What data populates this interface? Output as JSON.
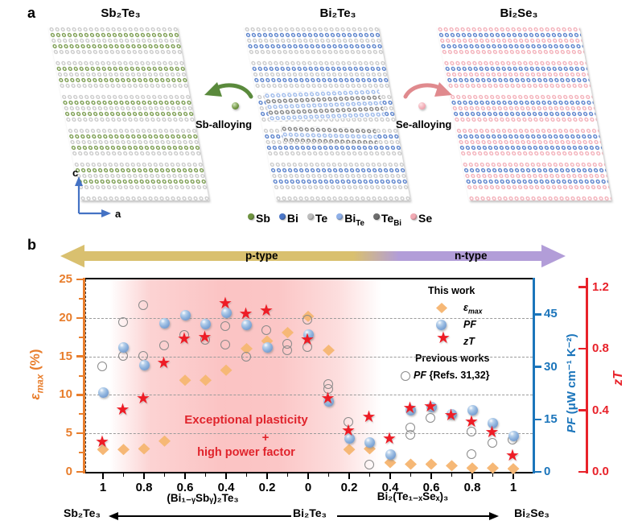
{
  "panel_a": {
    "label": "a",
    "structures": [
      {
        "title": "Sb₂Te₃"
      },
      {
        "title": "Bi₂Te₃"
      },
      {
        "title": "Bi₂Se₃"
      }
    ],
    "alloying_left": "Sb-alloying",
    "alloying_right": "Se-alloying",
    "axis_vertical": "c",
    "axis_horizontal": "a",
    "atom_legend": [
      {
        "label": "Sb",
        "sub": "",
        "color": "#6f9440"
      },
      {
        "label": "Bi",
        "sub": "",
        "color": "#4a76c7"
      },
      {
        "label": "Te",
        "sub": "",
        "color": "#bdbdbd"
      },
      {
        "label": "Bi",
        "sub": "Te",
        "color": "#8fb0e8"
      },
      {
        "label": "Te",
        "sub": "Bi",
        "color": "#6e6e6e"
      },
      {
        "label": "Se",
        "sub": "",
        "color": "#f2aab4"
      }
    ]
  },
  "panel_b": {
    "label": "b",
    "banner": {
      "p_label": "p-type",
      "n_label": "n-type",
      "p_color": "#d9c06f",
      "n_color": "#b29dd8"
    },
    "annotation": {
      "line1": "Exceptional plasticity",
      "plus": "+",
      "line2": "high power factor"
    },
    "legend": {
      "this_work": "This work",
      "eps_symbol": "ε",
      "eps_sub": "max",
      "pf_label": "PF",
      "zt_label": "zT",
      "previous": "Previous works",
      "refs_pf": "PF",
      "refs_text": " {Refs. 31,32}"
    },
    "composition_axis": {
      "left_end": "Sb₂Te₃",
      "left_formula": "(Bi₁₋ᵧSbᵧ)₂Te₃",
      "center": "Bi₂Te₃",
      "right_formula": "Bi₂(Te₁₋ₓSeₓ)₃",
      "right_end": "Bi₂Se₃"
    }
  },
  "colors": {
    "eps_axis": "#e87d2b",
    "pf_axis": "#1b75bb",
    "zt_axis": "#e8222a",
    "diamond": "#f6b876",
    "sphere": "#8db2dd",
    "star": "#ee1c25",
    "open_circle": "#8a8a8a"
  },
  "chart_data": {
    "type": "scatter",
    "title": "",
    "x_axis": {
      "tick_labels": [
        "1",
        "0.8",
        "0.6",
        "0.4",
        "0.2",
        "0",
        "0.2",
        "0.4",
        "0.6",
        "0.8",
        "1"
      ],
      "left_half": "y in (Bi1-ySby)2Te3, from 1 to 0",
      "right_half": "x in Bi2(Te1-xSex)3, from 0 to 1",
      "divider": {
        "side": "x",
        "value": 0.35
      }
    },
    "y_left": {
      "label_symbol": "ε",
      "label_sub": "max",
      "label_unit": " (%)",
      "range": [
        0,
        25
      ],
      "tick_labels": [
        "0",
        "5",
        "10",
        "15",
        "20",
        "25"
      ],
      "ticks": [
        0,
        5,
        10,
        15,
        20,
        25
      ],
      "minor_step": 2.5
    },
    "y_right_pf": {
      "label": "PF (μW cm⁻¹ K⁻²)",
      "range": [
        0,
        55
      ],
      "tick_labels": [
        "0",
        "15",
        "30",
        "45"
      ],
      "ticks": [
        0,
        15,
        30,
        45
      ]
    },
    "y_right_zt": {
      "label": "zT",
      "range": [
        0,
        1.25
      ],
      "tick_labels": [
        "0.0",
        "0.4",
        "0.8",
        "1.2"
      ],
      "ticks": [
        0,
        0.4,
        0.8,
        1.2
      ]
    },
    "gridlines_eps": [
      5,
      10,
      15,
      20
    ],
    "series": [
      {
        "name": "eps_max_this_work",
        "marker": "diamond",
        "unit": "%",
        "points": [
          {
            "side": "y",
            "c": 1,
            "v": 2.9
          },
          {
            "side": "y",
            "c": 0.9,
            "v": 2.9
          },
          {
            "side": "y",
            "c": 0.8,
            "v": 3.0
          },
          {
            "side": "y",
            "c": 0.7,
            "v": 4.0
          },
          {
            "side": "y",
            "c": 0.6,
            "v": 11.9
          },
          {
            "side": "y",
            "c": 0.5,
            "v": 11.9
          },
          {
            "side": "y",
            "c": 0.4,
            "v": 13.2
          },
          {
            "side": "y",
            "c": 0.3,
            "v": 16.0
          },
          {
            "side": "y",
            "c": 0.2,
            "v": 17.0
          },
          {
            "side": "y",
            "c": 0.1,
            "v": 18.1
          },
          {
            "side": "y",
            "c": 0,
            "v": 20.2
          },
          {
            "side": "x",
            "c": 0.1,
            "v": 15.8
          },
          {
            "side": "x",
            "c": 0.2,
            "v": 2.9
          },
          {
            "side": "x",
            "c": 0.3,
            "v": 3.0
          },
          {
            "side": "x",
            "c": 0.4,
            "v": 1.2
          },
          {
            "side": "x",
            "c": 0.5,
            "v": 1.0
          },
          {
            "side": "x",
            "c": 0.6,
            "v": 1.0
          },
          {
            "side": "x",
            "c": 0.7,
            "v": 0.8
          },
          {
            "side": "x",
            "c": 0.8,
            "v": 0.5
          },
          {
            "side": "x",
            "c": 0.9,
            "v": 0.5
          },
          {
            "side": "x",
            "c": 1,
            "v": 0.4
          }
        ]
      },
      {
        "name": "pf_previous_works",
        "marker": "open-circle",
        "unit": "uW/cm/K2",
        "points": [
          {
            "side": "y",
            "c": 1,
            "v": 30
          },
          {
            "side": "y",
            "c": 0.9,
            "v": 42.7
          },
          {
            "side": "y",
            "c": 0.9,
            "v": 33
          },
          {
            "side": "y",
            "c": 0.8,
            "v": 47.5
          },
          {
            "side": "y",
            "c": 0.8,
            "v": 33
          },
          {
            "side": "y",
            "c": 0.7,
            "v": 36
          },
          {
            "side": "y",
            "c": 0.6,
            "v": 39
          },
          {
            "side": "y",
            "c": 0.5,
            "v": 37.5
          },
          {
            "side": "y",
            "c": 0.4,
            "v": 41.5
          },
          {
            "side": "y",
            "c": 0.4,
            "v": 36.3
          },
          {
            "side": "y",
            "c": 0.3,
            "v": 32.8
          },
          {
            "side": "y",
            "c": 0.2,
            "v": 40.3
          },
          {
            "side": "y",
            "c": 0.1,
            "v": 36.5
          },
          {
            "side": "y",
            "c": 0.1,
            "v": 34.7
          },
          {
            "side": "y",
            "c": 0,
            "v": 43.4
          },
          {
            "side": "y",
            "c": 0,
            "v": 35.4
          },
          {
            "side": "x",
            "c": 0.1,
            "v": 24.9
          },
          {
            "side": "x",
            "c": 0.1,
            "v": 23.5
          },
          {
            "side": "x",
            "c": 0.2,
            "v": 14.2
          },
          {
            "side": "x",
            "c": 0.3,
            "v": 2.0
          },
          {
            "side": "x",
            "c": 0.5,
            "v": 12.4
          },
          {
            "side": "x",
            "c": 0.5,
            "v": 10.5
          },
          {
            "side": "x",
            "c": 0.6,
            "v": 15.2
          },
          {
            "side": "x",
            "c": 0.8,
            "v": 11.4
          },
          {
            "side": "x",
            "c": 0.8,
            "v": 5.0
          },
          {
            "side": "x",
            "c": 0.9,
            "v": 8.2
          },
          {
            "side": "x",
            "c": 1,
            "v": 9.0
          }
        ]
      },
      {
        "name": "pf_this_work",
        "marker": "sphere",
        "unit": "uW/cm/K2",
        "points": [
          {
            "side": "y",
            "c": 1,
            "v": 22.7
          },
          {
            "side": "y",
            "c": 0.9,
            "v": 35.6
          },
          {
            "side": "y",
            "c": 0.8,
            "v": 30.6
          },
          {
            "side": "y",
            "c": 0.7,
            "v": 42.5
          },
          {
            "side": "y",
            "c": 0.6,
            "v": 44.7
          },
          {
            "side": "y",
            "c": 0.5,
            "v": 42.3
          },
          {
            "side": "y",
            "c": 0.4,
            "v": 45.5
          },
          {
            "side": "y",
            "c": 0.3,
            "v": 42.0
          },
          {
            "side": "y",
            "c": 0.2,
            "v": 35.6
          },
          {
            "side": "y",
            "c": 0,
            "v": 39.2
          },
          {
            "side": "x",
            "c": 0.1,
            "v": 20.2
          },
          {
            "side": "x",
            "c": 0.2,
            "v": 9.5
          },
          {
            "side": "x",
            "c": 0.3,
            "v": 8.5
          },
          {
            "side": "x",
            "c": 0.4,
            "v": 5.0
          },
          {
            "side": "x",
            "c": 0.5,
            "v": 17.5
          },
          {
            "side": "x",
            "c": 0.6,
            "v": 18.5
          },
          {
            "side": "x",
            "c": 0.7,
            "v": 16.5
          },
          {
            "side": "x",
            "c": 0.8,
            "v": 17.5
          },
          {
            "side": "x",
            "c": 0.9,
            "v": 14.0
          },
          {
            "side": "x",
            "c": 1,
            "v": 10.2
          }
        ]
      },
      {
        "name": "zt_this_work",
        "marker": "star",
        "unit": "",
        "points": [
          {
            "side": "y",
            "c": 1,
            "v": 0.19
          },
          {
            "side": "y",
            "c": 0.9,
            "v": 0.4
          },
          {
            "side": "y",
            "c": 0.8,
            "v": 0.47
          },
          {
            "side": "y",
            "c": 0.7,
            "v": 0.7
          },
          {
            "side": "y",
            "c": 0.6,
            "v": 0.86
          },
          {
            "side": "y",
            "c": 0.5,
            "v": 0.87
          },
          {
            "side": "y",
            "c": 0.4,
            "v": 1.09
          },
          {
            "side": "y",
            "c": 0.3,
            "v": 1.02
          },
          {
            "side": "y",
            "c": 0.2,
            "v": 1.04
          },
          {
            "side": "y",
            "c": 0,
            "v": 0.85
          },
          {
            "side": "x",
            "c": 0.1,
            "v": 0.47
          },
          {
            "side": "x",
            "c": 0.2,
            "v": 0.26
          },
          {
            "side": "x",
            "c": 0.3,
            "v": 0.35
          },
          {
            "side": "x",
            "c": 0.4,
            "v": 0.21
          },
          {
            "side": "x",
            "c": 0.5,
            "v": 0.41
          },
          {
            "side": "x",
            "c": 0.6,
            "v": 0.42
          },
          {
            "side": "x",
            "c": 0.7,
            "v": 0.36
          },
          {
            "side": "x",
            "c": 0.8,
            "v": 0.32
          },
          {
            "side": "x",
            "c": 0.9,
            "v": 0.25
          },
          {
            "side": "x",
            "c": 1,
            "v": 0.1
          }
        ]
      }
    ]
  }
}
